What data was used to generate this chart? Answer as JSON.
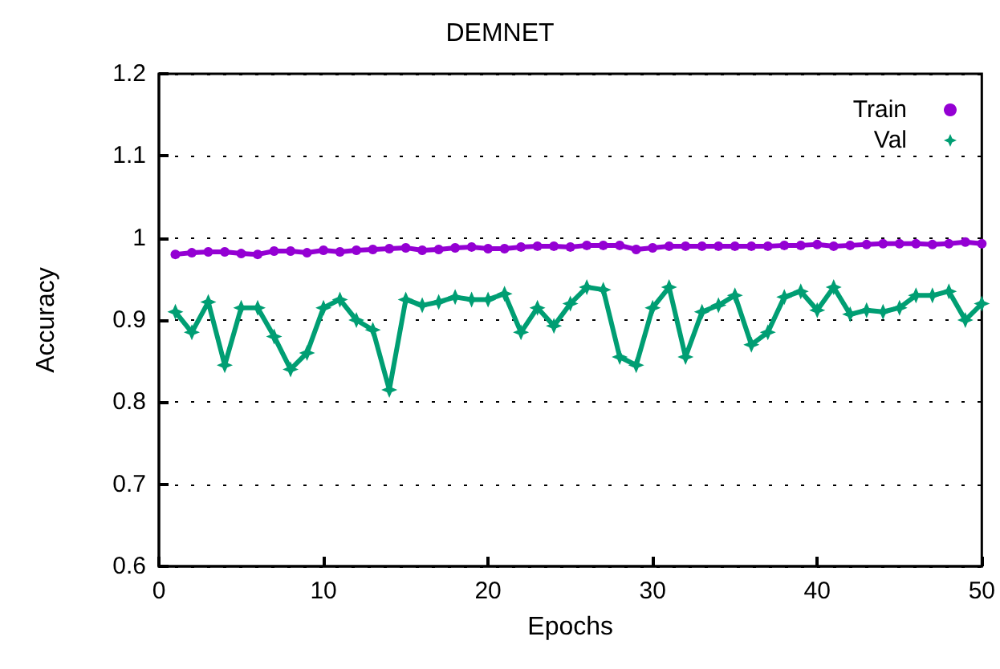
{
  "chart_data": {
    "type": "line",
    "title": "DEMNET",
    "xlabel": "Epochs",
    "ylabel": "Accuracy",
    "x": [
      1,
      2,
      3,
      4,
      5,
      6,
      7,
      8,
      9,
      10,
      11,
      12,
      13,
      14,
      15,
      16,
      17,
      18,
      19,
      20,
      21,
      22,
      23,
      24,
      25,
      26,
      27,
      28,
      29,
      30,
      31,
      32,
      33,
      34,
      35,
      36,
      37,
      38,
      39,
      40,
      41,
      42,
      43,
      44,
      45,
      46,
      47,
      48,
      49,
      50
    ],
    "series": [
      {
        "name": "Train",
        "color": "#9400d3",
        "marker": "circle",
        "values": [
          0.98,
          0.982,
          0.983,
          0.983,
          0.981,
          0.98,
          0.984,
          0.984,
          0.982,
          0.985,
          0.983,
          0.985,
          0.986,
          0.987,
          0.988,
          0.985,
          0.986,
          0.988,
          0.989,
          0.987,
          0.987,
          0.989,
          0.99,
          0.99,
          0.989,
          0.991,
          0.991,
          0.991,
          0.986,
          0.988,
          0.99,
          0.99,
          0.99,
          0.99,
          0.99,
          0.99,
          0.99,
          0.991,
          0.991,
          0.992,
          0.99,
          0.991,
          0.992,
          0.993,
          0.993,
          0.993,
          0.992,
          0.993,
          0.995,
          0.993
        ]
      },
      {
        "name": "Val",
        "color": "#009e73",
        "marker": "star",
        "values": [
          0.91,
          0.885,
          0.922,
          0.845,
          0.915,
          0.915,
          0.88,
          0.84,
          0.86,
          0.915,
          0.925,
          0.9,
          0.888,
          0.815,
          0.925,
          0.918,
          0.922,
          0.928,
          0.925,
          0.925,
          0.932,
          0.885,
          0.915,
          0.893,
          0.92,
          0.94,
          0.937,
          0.855,
          0.845,
          0.915,
          0.94,
          0.855,
          0.91,
          0.918,
          0.93,
          0.87,
          0.885,
          0.928,
          0.935,
          0.912,
          0.94,
          0.907,
          0.912,
          0.91,
          0.915,
          0.93,
          0.93,
          0.935,
          0.9,
          0.92
        ]
      }
    ],
    "xlim": [
      0,
      50
    ],
    "xticks": [
      0,
      10,
      20,
      30,
      40,
      50
    ],
    "ylim": [
      0.6,
      1.2
    ],
    "yticks": [
      0.6,
      0.7,
      0.8,
      0.9,
      1,
      1.1,
      1.2
    ],
    "grid": "y",
    "legend": "top right",
    "line_style": "solid"
  }
}
